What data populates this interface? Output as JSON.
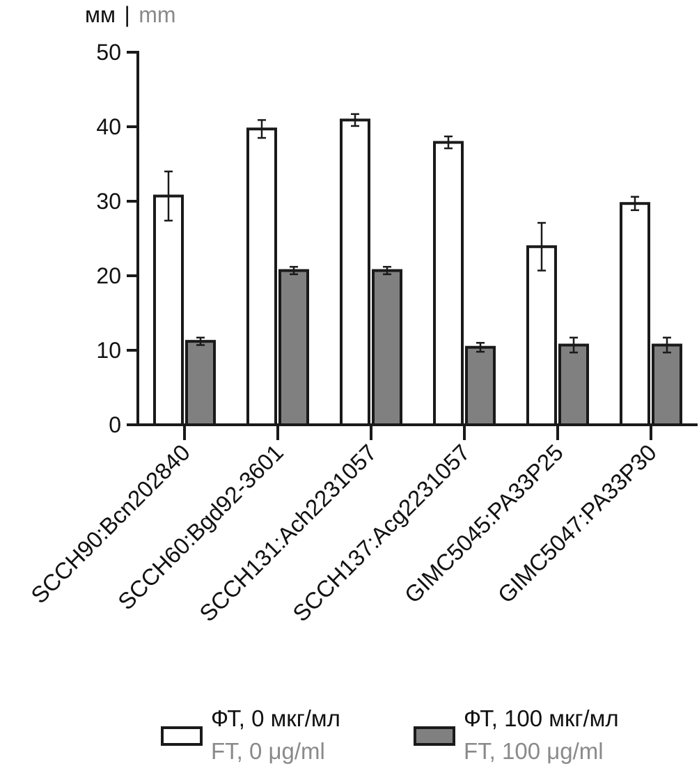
{
  "chart_data": {
    "type": "bar",
    "y_unit": {
      "ru": "мм",
      "separator": "|",
      "en": "mm"
    },
    "categories": [
      "SCCH90:Bcn202840",
      "SCCH60:Bgd92-3601",
      "SCCH131:Ach2231057",
      "SCCH137:Acg2231057",
      "GIMC5045:PA33P25",
      "GIMC5047:PA33P30"
    ],
    "series": [
      {
        "name_ru": "ФТ, 0 мкг/мл",
        "name_en": "FT, 0 μg/ml",
        "color": "#ffffff",
        "values": [
          30.7,
          39.7,
          40.9,
          37.9,
          23.9,
          29.7
        ],
        "errors": [
          3.3,
          1.2,
          0.8,
          0.8,
          3.2,
          0.9
        ]
      },
      {
        "name_ru": "ФТ, 100 мкг/мл",
        "name_en": "FT, 100 μg/ml",
        "color": "#808080",
        "values": [
          11.2,
          20.7,
          20.7,
          10.4,
          10.7,
          10.7
        ],
        "errors": [
          0.5,
          0.5,
          0.5,
          0.6,
          1.0,
          1.0
        ]
      }
    ],
    "ylim": [
      0,
      50
    ],
    "yticks": [
      0,
      10,
      20,
      30,
      40,
      50
    ],
    "grid": false,
    "legend_position": "bottom"
  }
}
